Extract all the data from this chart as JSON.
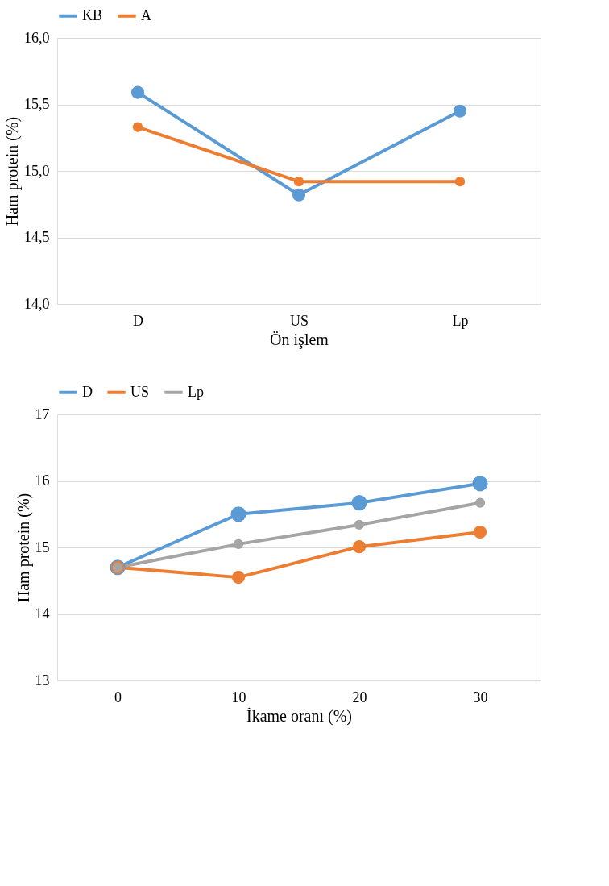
{
  "chart_data": [
    {
      "type": "line",
      "xlabel": "Ön işlem",
      "ylabel": "Ham protein (%)",
      "categories": [
        "D",
        "US",
        "Lp"
      ],
      "series": [
        {
          "name": "KB",
          "color": "#5b9bd5",
          "values": [
            15.59,
            14.82,
            15.45
          ]
        },
        {
          "name": "A",
          "color": "#ed7d31",
          "values": [
            15.33,
            14.92,
            14.92
          ]
        }
      ],
      "ylim": [
        14.0,
        16.0
      ],
      "yticks": [
        {
          "value": 14.0,
          "label": "14,0"
        },
        {
          "value": 14.5,
          "label": "14,5"
        },
        {
          "value": 15.0,
          "label": "15,0"
        },
        {
          "value": 15.5,
          "label": "15,5"
        },
        {
          "value": 16.0,
          "label": "16,0"
        }
      ],
      "grid": "y",
      "legend": "top",
      "marker": "circle"
    },
    {
      "type": "line",
      "xlabel": "İkame oranı (%)",
      "ylabel": "Ham protein (%)",
      "categories": [
        "0",
        "10",
        "20",
        "30"
      ],
      "series": [
        {
          "name": "D",
          "color": "#5b9bd5",
          "values": [
            14.7,
            15.5,
            15.67,
            15.96
          ]
        },
        {
          "name": "US",
          "color": "#ed7d31",
          "values": [
            14.7,
            14.55,
            15.01,
            15.23
          ]
        },
        {
          "name": "Lp",
          "color": "#a5a5a5",
          "values": [
            14.7,
            15.05,
            15.34,
            15.67
          ]
        }
      ],
      "ylim": [
        13,
        17
      ],
      "yticks": [
        13,
        14,
        15,
        16,
        17
      ],
      "grid": "y",
      "legend": "top",
      "marker": "circle"
    }
  ]
}
